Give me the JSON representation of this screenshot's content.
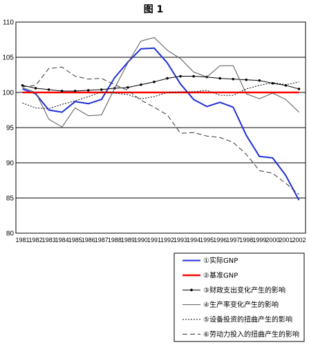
{
  "chart_data": {
    "type": "line",
    "title": "图 1",
    "xlabel": "",
    "ylabel": "",
    "ylim": [
      80,
      110
    ],
    "yticks": [
      80,
      85,
      90,
      95,
      100,
      105,
      110
    ],
    "grid": "horizontal",
    "legend_position": "bottom-right",
    "x": [
      "1981",
      "1982",
      "1983",
      "1984",
      "1985",
      "1986",
      "1987",
      "1988",
      "1989",
      "1990",
      "1991",
      "1992",
      "1993",
      "1994",
      "1995",
      "1996",
      "1997",
      "1998",
      "1999",
      "2000",
      "2001",
      "2002"
    ],
    "series": [
      {
        "name": "①实际GNP",
        "color": "#1f2fd6",
        "style": "solid",
        "width": 2,
        "values": [
          100.5,
          99.8,
          97.5,
          97.2,
          98.7,
          98.4,
          99.0,
          102.1,
          104.3,
          106.2,
          106.3,
          104.2,
          101.2,
          99.0,
          98.0,
          98.6,
          97.9,
          93.9,
          90.9,
          90.7,
          88.2,
          84.7
        ]
      },
      {
        "name": "②基准GNP",
        "color": "#ff0000",
        "style": "solid",
        "width": 2.5,
        "values": [
          100.0,
          100.0,
          100.0,
          100.0,
          100.0,
          100.0,
          100.0,
          100.0,
          100.0,
          100.0,
          100.0,
          100.0,
          100.0,
          100.0,
          100.0,
          100.0,
          100.0,
          100.0,
          100.0,
          100.0,
          100.0,
          100.0
        ]
      },
      {
        "name": "③财政支出变化产生的影响",
        "color": "#000000",
        "style": "marker",
        "width": 1,
        "values": [
          101.0,
          100.6,
          100.4,
          100.2,
          100.2,
          100.3,
          100.4,
          100.6,
          100.7,
          101.1,
          101.5,
          102.0,
          102.3,
          102.3,
          102.2,
          102.0,
          101.9,
          101.8,
          101.7,
          101.3,
          101.0,
          100.5
        ]
      },
      {
        "name": "④生产率变化产生的影响",
        "color": "#555555",
        "style": "solid",
        "width": 1,
        "values": [
          100.7,
          100.0,
          96.2,
          95.1,
          97.8,
          96.7,
          96.8,
          100.6,
          104.2,
          107.3,
          107.8,
          106.0,
          104.8,
          102.9,
          102.2,
          103.8,
          103.8,
          99.8,
          99.1,
          99.9,
          99.0,
          97.2
        ]
      },
      {
        "name": "⑤设备投资的扭曲产生的影响",
        "color": "#000000",
        "style": "dotted",
        "width": 1,
        "values": [
          98.5,
          97.8,
          97.7,
          98.3,
          98.8,
          99.4,
          100.1,
          99.9,
          99.7,
          99.1,
          99.4,
          100.0,
          100.1,
          100.1,
          100.3,
          99.6,
          99.6,
          100.5,
          101.0,
          101.4,
          101.1,
          101.5
        ]
      },
      {
        "name": "⑥劳动力投入的扭曲产生的影响",
        "color": "#333333",
        "style": "dashed",
        "width": 1,
        "values": [
          100.8,
          101.0,
          103.4,
          103.6,
          102.3,
          101.9,
          102.0,
          101.1,
          100.3,
          98.9,
          97.9,
          96.8,
          94.2,
          94.3,
          93.8,
          93.6,
          92.9,
          91.2,
          88.9,
          88.5,
          87.1,
          85.5
        ]
      }
    ]
  }
}
